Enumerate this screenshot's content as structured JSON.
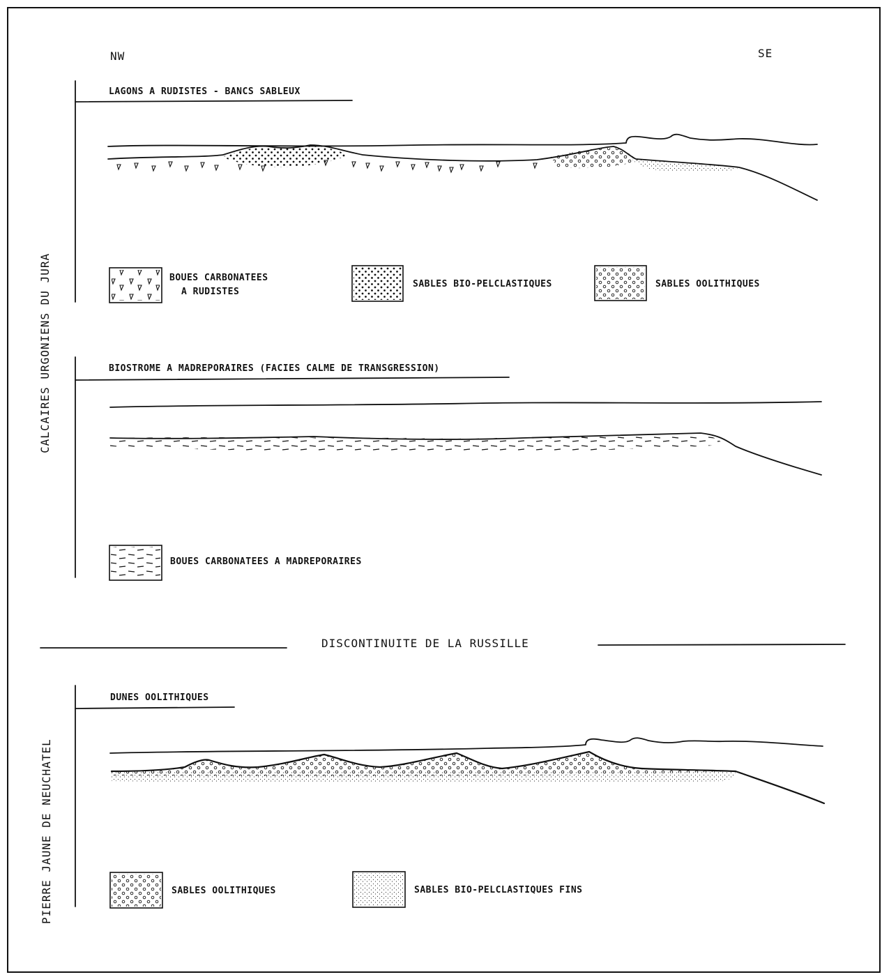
{
  "orientation": {
    "left": "NW",
    "right": "SE"
  },
  "sections": {
    "urgonian": {
      "label": "CALCAIRES URGONIENS DU JURA"
    },
    "pierre_jaune": {
      "label": "PIERRE JAUNE DE NEUCHATEL"
    }
  },
  "panels": {
    "lagoon": {
      "title": "LAGONS A RUDISTES - BANCS SABLEUX",
      "legend": [
        {
          "pattern": "rudist",
          "line1": "BOUES CARBONATEES",
          "line2": "A RUDISTES"
        },
        {
          "pattern": "dots",
          "line1": "SABLES BIO-PELCLASTIQUES"
        },
        {
          "pattern": "ooids",
          "line1": "SABLES OOLITHIQUES"
        }
      ]
    },
    "biostrome": {
      "title": "BIOSTROME A MADREPORAIRES (FACIES CALME DE TRANSGRESSION)",
      "legend": [
        {
          "pattern": "dashes",
          "line1": "BOUES CARBONATEES A MADREPORAIRES"
        }
      ]
    },
    "dunes": {
      "title": "DUNES OOLITHIQUES",
      "legend": [
        {
          "pattern": "ooids",
          "line1": "SABLES OOLITHIQUES"
        },
        {
          "pattern": "finedots",
          "line1": "SABLES BIO-PELCLASTIQUES FINS"
        }
      ]
    }
  },
  "discontinuity": {
    "label": "DISCONTINUITE DE LA RUSSILLE"
  }
}
